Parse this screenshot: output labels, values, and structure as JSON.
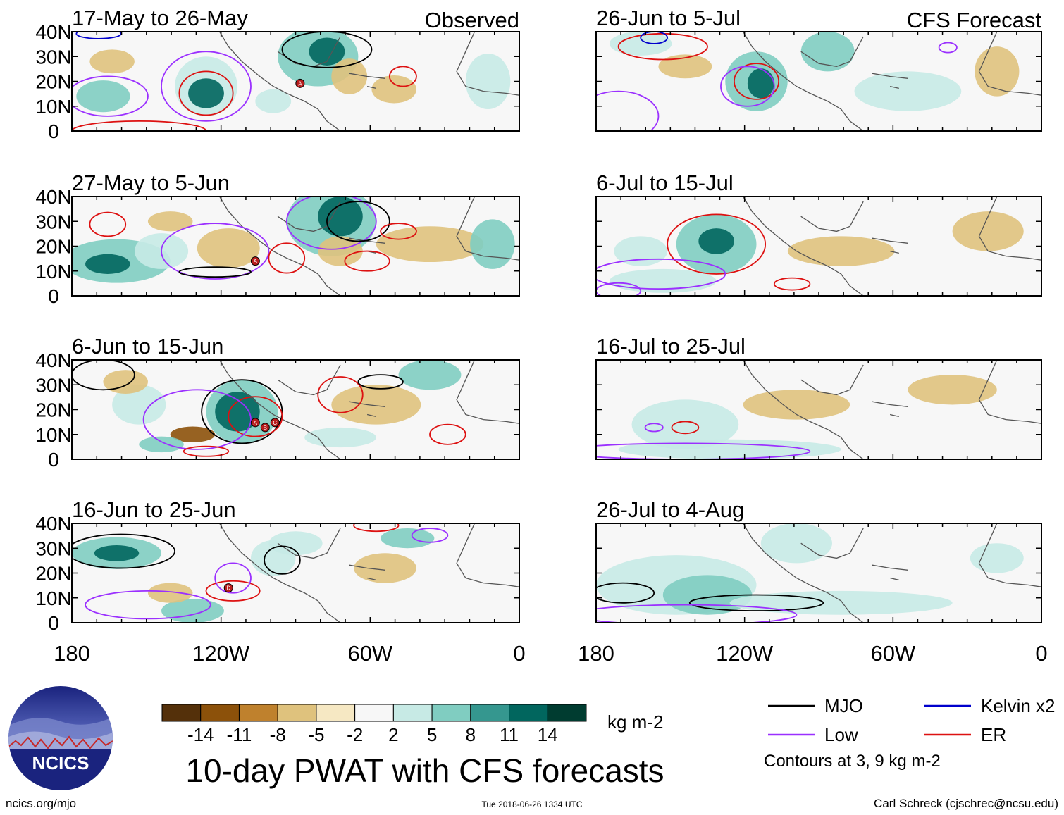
{
  "chart_data": {
    "type": "heatmap",
    "title": "10-day PWAT with CFS forecasts",
    "variable": "precipitable water anomaly",
    "columns": [
      {
        "header": "Observed",
        "panels": [
          "17-May to 26-May",
          "27-May to 5-Jun",
          "6-Jun to 15-Jun",
          "16-Jun to 25-Jun"
        ]
      },
      {
        "header": "CFS Forecast",
        "panels": [
          "26-Jun to 5-Jul",
          "6-Jul to 15-Jul",
          "16-Jul to 25-Jul",
          "26-Jul to 4-Aug"
        ]
      }
    ],
    "x_ticks": [
      "180",
      "120W",
      "60W",
      "0"
    ],
    "y_ticks": [
      "40N",
      "30N",
      "20N",
      "10N",
      "0"
    ],
    "xlim": [
      -180,
      0
    ],
    "ylim": [
      0,
      40
    ],
    "colorbar": {
      "unit": "kg m-2",
      "levels": [
        "-14",
        "-11",
        "-8",
        "-5",
        "-2",
        "2",
        "5",
        "8",
        "11",
        "14"
      ],
      "colors": [
        "#54300a",
        "#8c510a",
        "#bf812d",
        "#dfc27d",
        "#f6e8c3",
        "#f7f7f7",
        "#c7eae5",
        "#80cdc1",
        "#35978f",
        "#01665e",
        "#003c30"
      ]
    },
    "legend": [
      {
        "label": "MJO",
        "color": "#000000"
      },
      {
        "label": "Kelvin x2",
        "color": "#0000cc"
      },
      {
        "label": "Low",
        "color": "#9b30ff"
      },
      {
        "label": "ER",
        "color": "#dd1111"
      }
    ],
    "contour_note": "Contours at 3, 9 kg m-2",
    "storm_markers": [
      {
        "panel": 0,
        "labels": [
          "A"
        ]
      },
      {
        "panel": 1,
        "labels": [
          "A"
        ]
      },
      {
        "panel": 2,
        "labels": [
          "A",
          "B",
          "C"
        ]
      },
      {
        "panel": 3,
        "labels": [
          "D"
        ]
      }
    ]
  },
  "footer": {
    "logo_text": "NCICS",
    "left": "ncics.org/mjo",
    "center": "Tue 2018-06-26 1334 UTC",
    "right": "Carl Schreck (cjschrec@ncsu.edu)"
  }
}
